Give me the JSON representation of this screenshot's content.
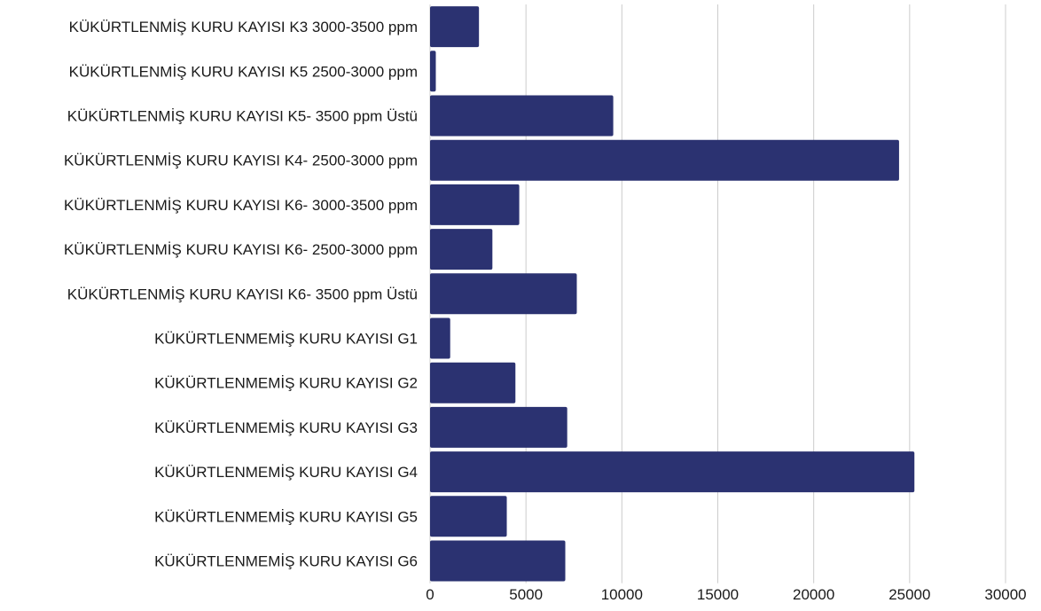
{
  "chart_data": {
    "type": "bar",
    "orientation": "horizontal",
    "title": "",
    "xlabel": "",
    "ylabel": "",
    "categories": [
      "KÜKÜRTLENMİŞ KURU KAYISI K3 3000-3500 ppm",
      "KÜKÜRTLENMİŞ KURU KAYISI K5 2500-3000 ppm",
      "KÜKÜRTLENMİŞ KURU KAYISI K5- 3500 ppm Üstü",
      "KÜKÜRTLENMİŞ KURU KAYISI K4- 2500-3000 ppm",
      "KÜKÜRTLENMİŞ KURU KAYISI K6- 3000-3500 ppm",
      "KÜKÜRTLENMİŞ KURU KAYISI K6- 2500-3000 ppm",
      "KÜKÜRTLENMİŞ KURU KAYISI K6- 3500 ppm Üstü",
      "KÜKÜRTLENMEMİŞ KURU KAYISI G1",
      "KÜKÜRTLENMEMİŞ KURU KAYISI G2",
      "KÜKÜRTLENMEMİŞ KURU KAYISI G3",
      "KÜKÜRTLENMEMİŞ KURU KAYISI G4",
      "KÜKÜRTLENMEMİŞ KURU KAYISI G5",
      "KÜKÜRTLENMEMİŞ KURU KAYISI G6"
    ],
    "values": [
      2550,
      300,
      9550,
      24450,
      4650,
      3250,
      7650,
      1050,
      4450,
      7150,
      25250,
      4000,
      7050
    ],
    "xlim": [
      0,
      30000
    ],
    "xticks": [
      "0",
      "5000",
      "10000",
      "15000",
      "20000",
      "25000",
      "30000"
    ],
    "grid": "vertical",
    "legend": "none",
    "bar_color": "#2b3271",
    "grid_color": "#cccccc"
  }
}
